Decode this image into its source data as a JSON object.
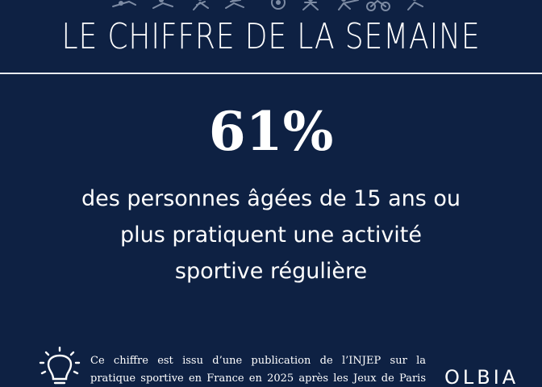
{
  "header": {
    "title": "LE CHIFFRE DE LA SEMAINE",
    "decoration_icon": "athlete-silhouettes-strip"
  },
  "main": {
    "figure": "61%",
    "statement_lines": [
      "des personnes âgées de 15 ans ou",
      "plus pratiquent une activité",
      "sportive régulière"
    ]
  },
  "footer": {
    "icon": "lightbulb-icon",
    "note_lines": [
      "Ce chiffre est issu d’une publication de l’INJEP sur la",
      "pratique sportive en France en 2025 après les Jeux de Paris"
    ],
    "logo_text": "OLBIA"
  },
  "colors": {
    "background": "#0e2143",
    "text": "#ffffff",
    "rule": "#e8ecf3",
    "silhouettes": "#7d8ba3"
  }
}
